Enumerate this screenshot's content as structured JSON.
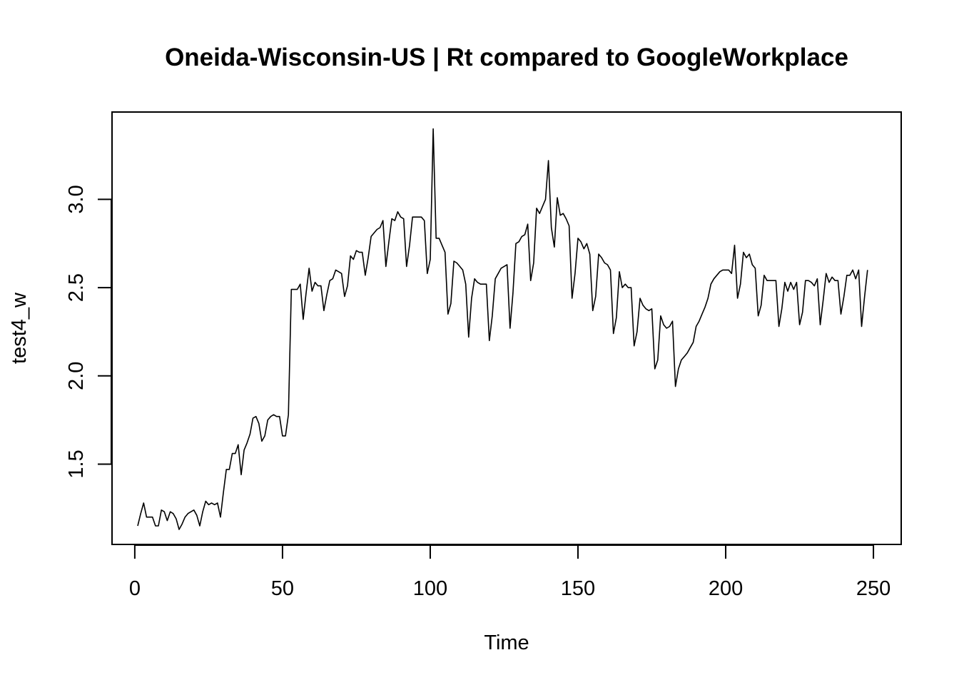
{
  "chart_data": {
    "type": "line",
    "title": "Oneida-Wisconsin-US | Rt compared to GoogleWorkplace",
    "xlabel": "Time",
    "ylabel": "test4_w",
    "xlim": [
      -7.7,
      259.4
    ],
    "ylim": [
      1.045,
      3.495
    ],
    "xticks": [
      0,
      50,
      100,
      150,
      200,
      250
    ],
    "yticks": [
      1.5,
      2.0,
      2.5,
      3.0
    ],
    "ytick_labels": [
      "1.5",
      "2.0",
      "2.5",
      "3.0"
    ],
    "grid": false,
    "legend": "none",
    "line_color": "#000000",
    "series": [
      {
        "x": [
          1,
          2,
          3,
          4,
          5,
          6,
          7,
          8,
          9,
          10,
          11,
          12,
          13,
          14,
          15,
          16,
          17,
          18,
          19,
          20,
          21,
          22,
          23,
          24,
          25,
          26,
          27,
          28,
          29,
          30,
          31,
          32,
          33,
          34,
          35,
          36,
          37,
          38,
          39,
          40,
          41,
          42,
          43,
          44,
          45,
          46,
          47,
          48,
          49,
          50,
          51,
          52,
          53,
          54,
          55,
          56,
          57,
          58,
          59,
          60,
          61,
          62,
          63,
          64,
          65,
          66,
          67,
          68,
          69,
          70,
          71,
          72,
          73,
          74,
          75,
          76,
          77,
          78,
          79,
          80,
          81,
          82,
          83,
          84,
          85,
          86,
          87,
          88,
          89,
          90,
          91,
          92,
          93,
          94,
          95,
          96,
          97,
          98,
          99,
          100,
          101,
          102,
          103,
          104,
          105,
          106,
          107,
          108,
          109,
          110,
          111,
          112,
          113,
          114,
          115,
          116,
          117,
          118,
          119,
          120,
          121,
          122,
          123,
          124,
          125,
          126,
          127,
          128,
          129,
          130,
          131,
          132,
          133,
          134,
          135,
          136,
          137,
          138,
          139,
          140,
          141,
          142,
          143,
          144,
          145,
          146,
          147,
          148,
          149,
          150,
          151,
          152,
          153,
          154,
          155,
          156,
          157,
          158,
          159,
          160,
          161,
          162,
          163,
          164,
          165,
          166,
          167,
          168,
          169,
          170,
          171,
          172,
          173,
          174,
          175,
          176,
          177,
          178,
          179,
          180,
          181,
          182,
          183,
          184,
          185,
          186,
          187,
          188,
          189,
          190,
          191,
          192,
          193,
          194,
          195,
          196,
          197,
          198,
          199,
          200,
          201,
          202,
          203,
          204,
          205,
          206,
          207,
          208,
          209,
          210,
          211,
          212,
          213,
          214,
          215,
          216,
          217,
          218,
          219,
          220,
          221,
          222,
          223,
          224,
          225,
          226,
          227,
          228,
          229,
          230,
          231,
          232,
          233,
          234,
          235,
          236,
          237,
          238,
          239,
          240,
          241,
          242,
          243,
          244,
          245,
          246,
          247,
          248
        ],
        "values": [
          1.15,
          1.22,
          1.28,
          1.2,
          1.2,
          1.2,
          1.15,
          1.15,
          1.24,
          1.23,
          1.18,
          1.23,
          1.22,
          1.19,
          1.13,
          1.16,
          1.2,
          1.22,
          1.23,
          1.24,
          1.21,
          1.15,
          1.23,
          1.29,
          1.27,
          1.28,
          1.27,
          1.28,
          1.2,
          1.34,
          1.47,
          1.47,
          1.56,
          1.56,
          1.61,
          1.44,
          1.58,
          1.62,
          1.67,
          1.76,
          1.77,
          1.73,
          1.63,
          1.66,
          1.75,
          1.77,
          1.78,
          1.77,
          1.77,
          1.66,
          1.66,
          1.78,
          2.49,
          2.49,
          2.49,
          2.52,
          2.32,
          2.47,
          2.61,
          2.48,
          2.53,
          2.51,
          2.51,
          2.37,
          2.46,
          2.54,
          2.55,
          2.6,
          2.59,
          2.58,
          2.45,
          2.51,
          2.68,
          2.66,
          2.71,
          2.7,
          2.7,
          2.57,
          2.67,
          2.79,
          2.81,
          2.83,
          2.84,
          2.88,
          2.62,
          2.76,
          2.89,
          2.88,
          2.93,
          2.9,
          2.89,
          2.62,
          2.74,
          2.9,
          2.9,
          2.9,
          2.9,
          2.88,
          2.58,
          2.66,
          3.4,
          2.78,
          2.78,
          2.74,
          2.7,
          2.35,
          2.41,
          2.65,
          2.64,
          2.62,
          2.6,
          2.52,
          2.22,
          2.44,
          2.55,
          2.53,
          2.52,
          2.52,
          2.52,
          2.2,
          2.34,
          2.55,
          2.58,
          2.61,
          2.62,
          2.63,
          2.27,
          2.47,
          2.75,
          2.76,
          2.79,
          2.8,
          2.86,
          2.54,
          2.64,
          2.95,
          2.92,
          2.96,
          3.0,
          3.22,
          2.84,
          2.73,
          3.01,
          2.91,
          2.92,
          2.89,
          2.85,
          2.44,
          2.58,
          2.78,
          2.76,
          2.72,
          2.75,
          2.69,
          2.37,
          2.45,
          2.69,
          2.67,
          2.64,
          2.63,
          2.6,
          2.24,
          2.33,
          2.59,
          2.5,
          2.52,
          2.5,
          2.5,
          2.17,
          2.25,
          2.44,
          2.4,
          2.38,
          2.37,
          2.38,
          2.04,
          2.09,
          2.34,
          2.29,
          2.27,
          2.28,
          2.31,
          1.94,
          2.04,
          2.09,
          2.11,
          2.13,
          2.16,
          2.19,
          2.28,
          2.31,
          2.35,
          2.39,
          2.44,
          2.52,
          2.55,
          2.57,
          2.59,
          2.6,
          2.6,
          2.6,
          2.58,
          2.74,
          2.44,
          2.52,
          2.7,
          2.67,
          2.69,
          2.63,
          2.61,
          2.34,
          2.4,
          2.57,
          2.54,
          2.54,
          2.54,
          2.54,
          2.28,
          2.38,
          2.53,
          2.48,
          2.53,
          2.49,
          2.53,
          2.29,
          2.36,
          2.54,
          2.54,
          2.53,
          2.51,
          2.55,
          2.29,
          2.43,
          2.58,
          2.53,
          2.56,
          2.54,
          2.54,
          2.35,
          2.45,
          2.57,
          2.57,
          2.6,
          2.55,
          2.6,
          2.28,
          2.45,
          2.6
        ]
      }
    ]
  }
}
